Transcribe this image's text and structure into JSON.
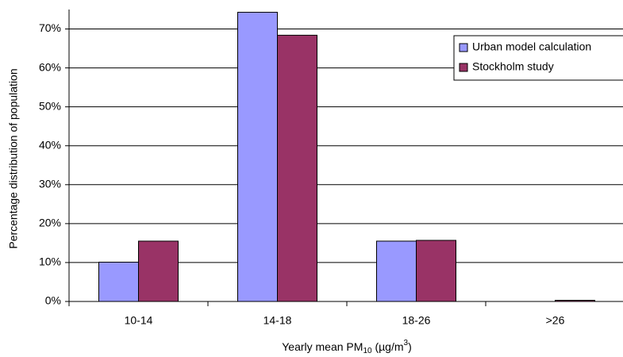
{
  "chart_data": {
    "type": "bar",
    "x_label": [
      "Yearly mean PM",
      "10",
      " (µg/m",
      "3",
      ")"
    ],
    "y_label": "Percentage distribution of population",
    "categories": [
      "10-14",
      "14-18",
      "18-26",
      ">26"
    ],
    "series": [
      {
        "name": "Urban model calculation",
        "color": "#9999ff",
        "values": [
          10.1,
          74.3,
          15.5,
          0
        ]
      },
      {
        "name": "Stockholm study",
        "color": "#993366",
        "values": [
          15.5,
          68.4,
          15.7,
          0.3
        ]
      }
    ],
    "ylim": [
      0,
      75
    ],
    "yticks": [
      {
        "value": 0,
        "label": "0%"
      },
      {
        "value": 10,
        "label": "10%"
      },
      {
        "value": 20,
        "label": "20%"
      },
      {
        "value": 30,
        "label": "30%"
      },
      {
        "value": 40,
        "label": "40%"
      },
      {
        "value": 50,
        "label": "50%"
      },
      {
        "value": 60,
        "label": "60%"
      },
      {
        "value": 70,
        "label": "70%"
      }
    ],
    "grid": true,
    "legend": "upper-right"
  }
}
